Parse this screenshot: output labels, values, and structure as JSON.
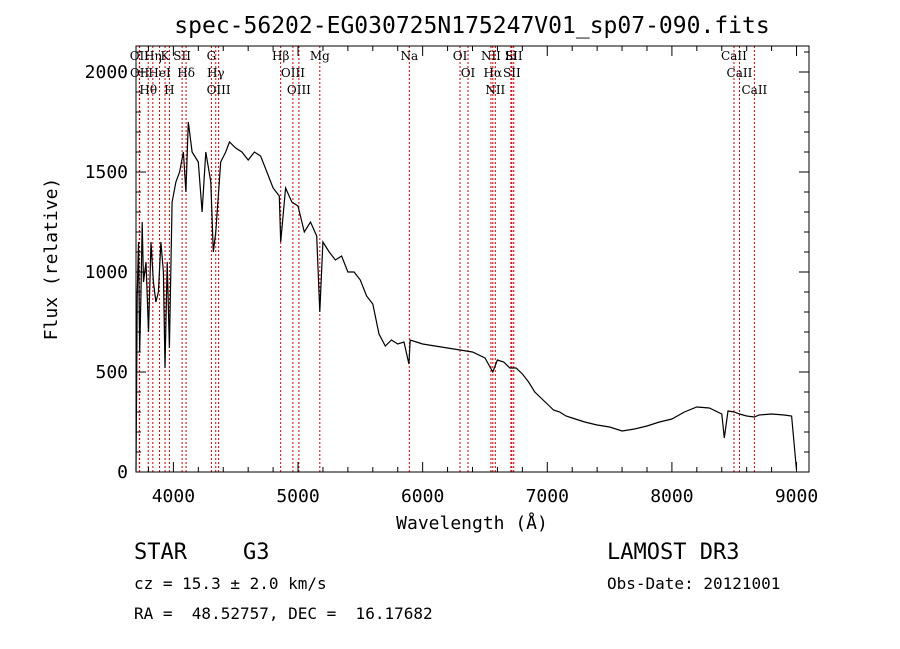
{
  "chart_data": {
    "type": "line",
    "title": "spec-56202-EG030725N175247V01_sp07-090.fits",
    "xlabel": "Wavelength (Å)",
    "ylabel": "Flux (relative)",
    "xlim": [
      3700,
      9100
    ],
    "ylim": [
      0,
      2130
    ],
    "x_ticks": [
      4000,
      5000,
      6000,
      7000,
      8000,
      9000
    ],
    "y_ticks": [
      0,
      500,
      1000,
      1500,
      2000
    ],
    "grid": false,
    "series": [
      {
        "x": [
          3700,
          3705,
          3710,
          3720,
          3730,
          3740,
          3750,
          3760,
          3780,
          3800,
          3820,
          3840,
          3860,
          3880,
          3900,
          3920,
          3933,
          3950,
          3968,
          3990,
          4020,
          4050,
          4080,
          4100,
          4120,
          4150,
          4200,
          4230,
          4260,
          4300,
          4320,
          4340,
          4380,
          4420,
          4450,
          4500,
          4550,
          4600,
          4650,
          4700,
          4750,
          4800,
          4850,
          4861,
          4900,
          4950,
          5000,
          5050,
          5100,
          5150,
          5175,
          5200,
          5250,
          5300,
          5350,
          5400,
          5450,
          5500,
          5550,
          5600,
          5650,
          5700,
          5750,
          5800,
          5850,
          5890,
          5900,
          5950,
          6000,
          6100,
          6200,
          6300,
          6400,
          6500,
          6563,
          6600,
          6650,
          6700,
          6750,
          6800,
          6850,
          6900,
          6950,
          7000,
          7050,
          7100,
          7150,
          7200,
          7300,
          7400,
          7500,
          7600,
          7700,
          7800,
          7900,
          8000,
          8100,
          8200,
          8300,
          8400,
          8420,
          8450,
          8500,
          8542,
          8600,
          8662,
          8700,
          8800,
          8900,
          8960,
          9000
        ],
        "y": [
          5,
          420,
          880,
          1150,
          600,
          900,
          1250,
          950,
          1050,
          700,
          1150,
          950,
          850,
          900,
          1150,
          1000,
          520,
          1050,
          620,
          1350,
          1450,
          1500,
          1600,
          1400,
          1750,
          1600,
          1550,
          1300,
          1600,
          1450,
          1100,
          1200,
          1550,
          1600,
          1650,
          1620,
          1600,
          1560,
          1600,
          1580,
          1500,
          1420,
          1380,
          1150,
          1420,
          1350,
          1330,
          1200,
          1250,
          1180,
          800,
          1150,
          1100,
          1060,
          1080,
          1000,
          1000,
          960,
          880,
          840,
          690,
          630,
          660,
          640,
          650,
          540,
          660,
          650,
          640,
          630,
          620,
          610,
          600,
          570,
          500,
          560,
          550,
          520,
          520,
          490,
          450,
          400,
          370,
          340,
          310,
          300,
          280,
          270,
          250,
          235,
          225,
          205,
          215,
          230,
          250,
          265,
          300,
          325,
          320,
          290,
          170,
          305,
          300,
          290,
          280,
          275,
          285,
          290,
          285,
          280,
          10
        ]
      }
    ],
    "line_markers": [
      {
        "label": "OII",
        "x": 3727
      },
      {
        "label": "OII",
        "x": 3729
      },
      {
        "label": "Hθ",
        "x": 3798
      },
      {
        "label": "Hη",
        "x": 3835
      },
      {
        "label": "HeI",
        "x": 3889
      },
      {
        "label": "K",
        "x": 3933
      },
      {
        "label": "H",
        "x": 3968
      },
      {
        "label": "SII",
        "x": 4070
      },
      {
        "label": "Hδ",
        "x": 4102
      },
      {
        "label": "Hγ",
        "x": 4340
      },
      {
        "label": "OIII",
        "x": 4363
      },
      {
        "label": "G",
        "x": 4305
      },
      {
        "label": "Hβ",
        "x": 4861
      },
      {
        "label": "OIII",
        "x": 4959
      },
      {
        "label": "OIII",
        "x": 5007
      },
      {
        "label": "Mg",
        "x": 5175
      },
      {
        "label": "Na",
        "x": 5893
      },
      {
        "label": "OI",
        "x": 6300
      },
      {
        "label": "OI",
        "x": 6364
      },
      {
        "label": "NII",
        "x": 6548
      },
      {
        "label": "Hα",
        "x": 6563
      },
      {
        "label": "NII",
        "x": 6583
      },
      {
        "label": "Li",
        "x": 6708
      },
      {
        "label": "SII",
        "x": 6716
      },
      {
        "label": "SII",
        "x": 6731
      },
      {
        "label": "CaII",
        "x": 8498
      },
      {
        "label": "CaII",
        "x": 8542
      },
      {
        "label": "CaII",
        "x": 8662
      }
    ],
    "line_marker_color": "#cc0000"
  },
  "info": {
    "object_class": "STAR",
    "subclass": "G3",
    "survey": "LAMOST DR3",
    "redshift": "cz = 15.3 ± 2.0 km/s",
    "obs_date": "Obs-Date: 20121001",
    "coords": "RA =  48.52757, DEC =  16.17682"
  }
}
